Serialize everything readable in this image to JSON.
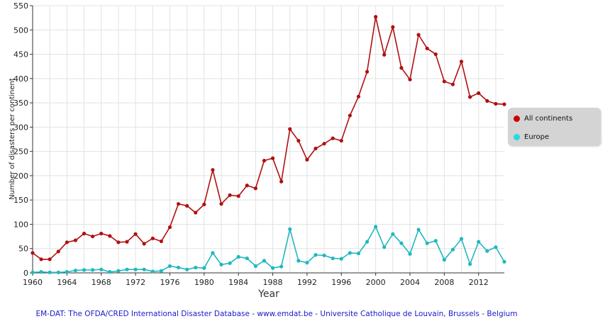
{
  "chart_data": {
    "type": "line",
    "title": "",
    "xlabel": "Year",
    "ylabel": "Number of disasters per continent",
    "xlim": [
      1960,
      2015
    ],
    "ylim": [
      0,
      550
    ],
    "x_ticks": [
      "1960",
      "1964",
      "1968",
      "1972",
      "1976",
      "1980",
      "1984",
      "1988",
      "1992",
      "1996",
      "2000",
      "2004",
      "2008",
      "2012"
    ],
    "y_ticks": [
      "0",
      "50",
      "100",
      "150",
      "200",
      "250",
      "300",
      "350",
      "400",
      "450",
      "500",
      "550"
    ],
    "grid": true,
    "legend_position": "right",
    "x": [
      1960,
      1961,
      1962,
      1963,
      1964,
      1965,
      1966,
      1967,
      1968,
      1969,
      1970,
      1971,
      1972,
      1973,
      1974,
      1975,
      1976,
      1977,
      1978,
      1979,
      1980,
      1981,
      1982,
      1983,
      1984,
      1985,
      1986,
      1987,
      1988,
      1989,
      1990,
      1991,
      1992,
      1993,
      1994,
      1995,
      1996,
      1997,
      1998,
      1999,
      2000,
      2001,
      2002,
      2003,
      2004,
      2005,
      2006,
      2007,
      2008,
      2009,
      2010,
      2011,
      2012,
      2013,
      2014,
      2015
    ],
    "series": [
      {
        "name": "All continents",
        "color": "#b01010",
        "values": [
          41,
          28,
          28,
          44,
          63,
          67,
          81,
          75,
          81,
          76,
          63,
          64,
          80,
          60,
          71,
          65,
          94,
          142,
          138,
          124,
          141,
          212,
          142,
          160,
          158,
          180,
          174,
          231,
          236,
          188,
          296,
          272,
          233,
          256,
          266,
          277,
          272,
          324,
          363,
          414,
          527,
          449,
          506,
          422,
          398,
          490,
          462,
          450,
          394,
          388,
          435,
          362,
          370,
          354,
          348,
          347
        ]
      },
      {
        "name": "Europe",
        "color": "#1fb8bf",
        "values": [
          1,
          2,
          1,
          1,
          2,
          5,
          6,
          6,
          7,
          2,
          4,
          7,
          7,
          7,
          3,
          4,
          14,
          11,
          7,
          11,
          10,
          41,
          17,
          20,
          33,
          30,
          14,
          25,
          10,
          13,
          90,
          25,
          21,
          37,
          36,
          30,
          29,
          41,
          40,
          64,
          95,
          53,
          80,
          61,
          39,
          89,
          61,
          66,
          27,
          48,
          70,
          18,
          64,
          45,
          53,
          23
        ]
      }
    ]
  },
  "source_text": "EM-DAT: The OFDA/CRED International Disaster Database - www.emdat.be - Universite Catholique de Louvain, Brussels - Belgium"
}
